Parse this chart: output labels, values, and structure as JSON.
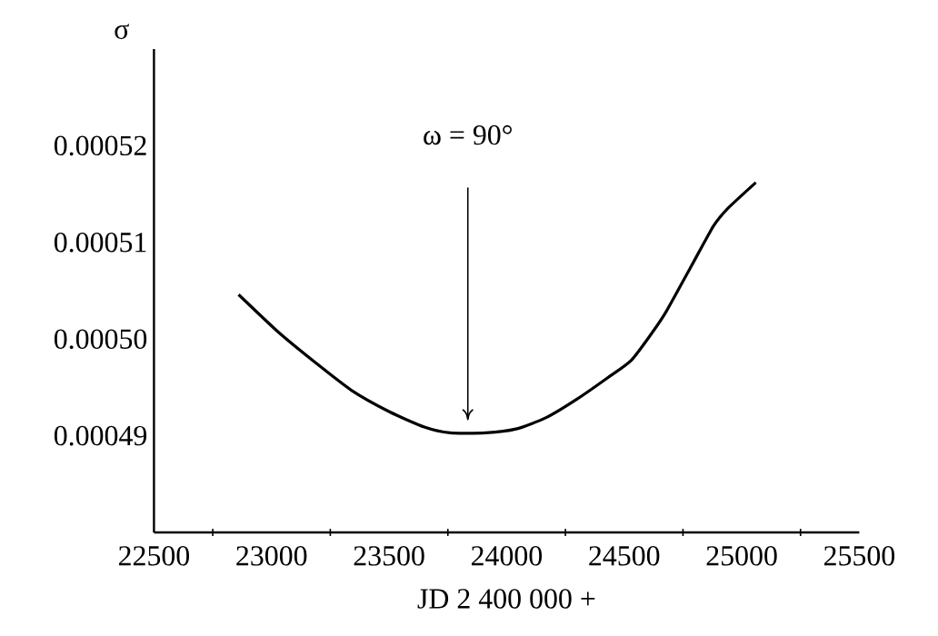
{
  "chart_data": {
    "type": "line",
    "xlabel": "JD 2 400 000 +",
    "ylabel": "σ",
    "x": [
      22860,
      23030,
      23190,
      23340,
      23500,
      23650,
      23760,
      23910,
      24040,
      24170,
      24300,
      24430,
      24530,
      24620,
      24680,
      24780,
      24880,
      24940,
      25060
    ],
    "series": [
      {
        "color": "#000000",
        "values": [
          0.0005046,
          0.0005007,
          0.0004975,
          0.0004947,
          0.0004925,
          0.0004909,
          0.0004903,
          0.0004903,
          0.0004907,
          0.0004919,
          0.0004938,
          0.000496,
          0.0004978,
          0.0005007,
          0.0005029,
          0.0005073,
          0.0005117,
          0.0005135,
          0.0005162
        ]
      }
    ],
    "xlim": [
      22500,
      25500
    ],
    "xticks": [
      22500,
      23000,
      23500,
      24000,
      24500,
      25000,
      25500
    ],
    "ylim": [
      0.00048,
      0.00053
    ],
    "yticks": [
      0.00049,
      {
        "value": 0.0005,
        "label": "0.00050"
      },
      0.00051,
      0.00052
    ],
    "annotations": [
      "ω = 90°"
    ],
    "marker": "none",
    "line_style": "solid"
  }
}
